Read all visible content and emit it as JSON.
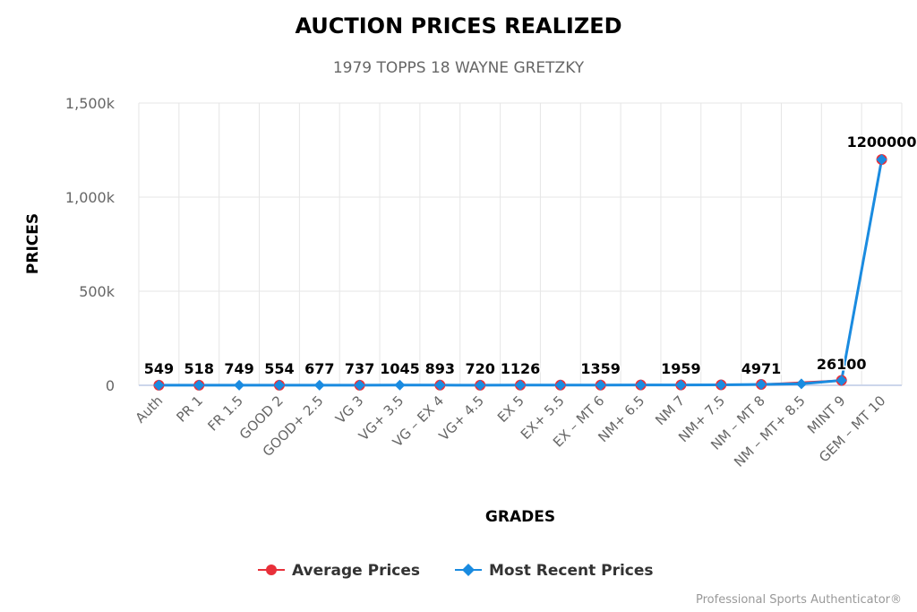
{
  "chart_data": {
    "type": "line",
    "title": "AUCTION PRICES REALIZED",
    "subtitle": "1979 TOPPS 18 WAYNE GRETZKY",
    "xlabel": "GRADES",
    "ylabel": "PRICES",
    "ylim": [
      0,
      1500000
    ],
    "yticks": [
      0,
      500000,
      1000000,
      1500000
    ],
    "ytick_labels": [
      "0",
      "500k",
      "1,000k",
      "1,500k"
    ],
    "grid": true,
    "legend_position": "bottom",
    "categories": [
      "Auth",
      "PR 1",
      "FR 1.5",
      "GOOD 2",
      "GOOD+ 2.5",
      "VG 3",
      "VG+ 3.5",
      "VG – EX 4",
      "VG+ 4.5",
      "EX 5",
      "EX+ 5.5",
      "EX – MT 6",
      "NM+ 6.5",
      "NM 7",
      "NM+ 7.5",
      "NM – MT 8",
      "NM – MT+ 8.5",
      "MINT 9",
      "GEM – MT 10"
    ],
    "series": [
      {
        "name": "Average Prices",
        "color": "#e8303a",
        "marker": "circle",
        "values": [
          549,
          518,
          null,
          554,
          null,
          737,
          null,
          893,
          720,
          1126,
          1200,
          1359,
          1600,
          1959,
          2500,
          4971,
          null,
          26100,
          1200000
        ]
      },
      {
        "name": "Most Recent Prices",
        "color": "#1a8be0",
        "marker": "diamond",
        "values": [
          549,
          518,
          749,
          554,
          677,
          737,
          1045,
          893,
          720,
          1126,
          1200,
          1359,
          1600,
          1959,
          2500,
          4971,
          8000,
          26100,
          1200000
        ]
      }
    ],
    "data_labels": [
      "549",
      "518",
      "749",
      "554",
      "677",
      "737",
      "1045",
      "893",
      "720",
      "1126",
      null,
      "1359",
      null,
      "1959",
      null,
      "4971",
      null,
      "26100",
      "1200000"
    ]
  },
  "credits": "Professional Sports Authenticator®"
}
